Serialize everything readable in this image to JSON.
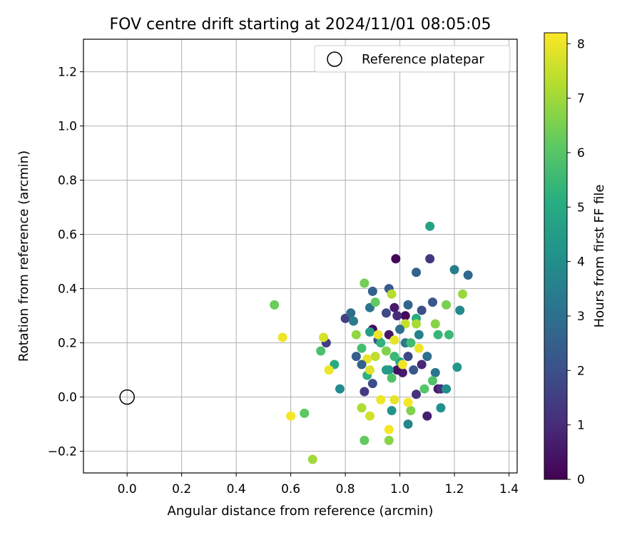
{
  "chart_data": {
    "type": "scatter",
    "title": "FOV centre drift starting at 2024/11/01 08:05:05",
    "xlabel": "Angular distance from reference (arcmin)",
    "ylabel": "Rotation from reference (arcmin)",
    "xlim": [
      -0.16,
      1.43
    ],
    "ylim": [
      -0.28,
      1.32
    ],
    "xticks": [
      0.0,
      0.2,
      0.4,
      0.6,
      0.8,
      1.0,
      1.2,
      1.4
    ],
    "xtick_labels": [
      "0.0",
      "0.2",
      "0.4",
      "0.6",
      "0.8",
      "1.0",
      "1.2",
      "1.4"
    ],
    "yticks": [
      -0.2,
      0.0,
      0.2,
      0.4,
      0.6,
      0.8,
      1.0,
      1.2
    ],
    "ytick_labels": [
      "−0.2",
      "0.0",
      "0.2",
      "0.4",
      "0.6",
      "0.8",
      "1.0",
      "1.2"
    ],
    "grid": true,
    "legend": {
      "placement": "top-right",
      "entries": [
        "Reference platepar"
      ]
    },
    "reference_point": {
      "x": 0.0,
      "y": 0.0
    },
    "colorbar": {
      "label": "Hours from first FF file",
      "colormap": "viridis",
      "range": [
        0,
        8.2
      ],
      "ticks": [
        0,
        1,
        2,
        3,
        4,
        5,
        6,
        7,
        8
      ],
      "tick_labels": [
        "0",
        "1",
        "2",
        "3",
        "4",
        "5",
        "6",
        "7",
        "8"
      ]
    },
    "points": [
      {
        "x": 0.985,
        "y": 0.51,
        "h": 0.1
      },
      {
        "x": 1.02,
        "y": 0.3,
        "h": 0.2
      },
      {
        "x": 0.9,
        "y": 0.25,
        "h": 0.3
      },
      {
        "x": 0.96,
        "y": 0.23,
        "h": 0.5
      },
      {
        "x": 1.14,
        "y": 0.03,
        "h": 0.5
      },
      {
        "x": 1.01,
        "y": 0.09,
        "h": 0.6
      },
      {
        "x": 0.99,
        "y": 0.1,
        "h": 0.4
      },
      {
        "x": 1.1,
        "y": -0.07,
        "h": 0.7
      },
      {
        "x": 0.98,
        "y": 0.33,
        "h": 0.6
      },
      {
        "x": 1.08,
        "y": 0.12,
        "h": 0.9
      },
      {
        "x": 1.11,
        "y": 0.51,
        "h": 1.3
      },
      {
        "x": 1.15,
        "y": 0.03,
        "h": 1.1
      },
      {
        "x": 1.06,
        "y": 0.01,
        "h": 1.2
      },
      {
        "x": 0.87,
        "y": 0.02,
        "h": 1.4
      },
      {
        "x": 0.8,
        "y": 0.29,
        "h": 1.6
      },
      {
        "x": 0.73,
        "y": 0.2,
        "h": 1.5
      },
      {
        "x": 1.03,
        "y": 0.15,
        "h": 1.7
      },
      {
        "x": 0.95,
        "y": 0.31,
        "h": 1.8
      },
      {
        "x": 1.08,
        "y": 0.32,
        "h": 2.0
      },
      {
        "x": 0.9,
        "y": 0.05,
        "h": 1.9
      },
      {
        "x": 0.92,
        "y": 0.21,
        "h": 2.1
      },
      {
        "x": 1.12,
        "y": 0.35,
        "h": 2.2
      },
      {
        "x": 0.96,
        "y": 0.4,
        "h": 2.3
      },
      {
        "x": 1.06,
        "y": 0.46,
        "h": 2.6
      },
      {
        "x": 0.9,
        "y": 0.39,
        "h": 2.5
      },
      {
        "x": 0.84,
        "y": 0.15,
        "h": 2.4
      },
      {
        "x": 1.03,
        "y": 0.34,
        "h": 2.7
      },
      {
        "x": 1.25,
        "y": 0.45,
        "h": 2.8
      },
      {
        "x": 0.82,
        "y": 0.31,
        "h": 2.9
      },
      {
        "x": 1.1,
        "y": 0.15,
        "h": 3.0
      },
      {
        "x": 1.13,
        "y": 0.09,
        "h": 3.2
      },
      {
        "x": 0.89,
        "y": 0.33,
        "h": 3.1
      },
      {
        "x": 1.02,
        "y": 0.2,
        "h": 3.3
      },
      {
        "x": 1.2,
        "y": 0.47,
        "h": 3.5
      },
      {
        "x": 0.83,
        "y": 0.28,
        "h": 3.4
      },
      {
        "x": 1.07,
        "y": 0.23,
        "h": 3.6
      },
      {
        "x": 1.22,
        "y": 0.32,
        "h": 3.8
      },
      {
        "x": 1.03,
        "y": -0.1,
        "h": 3.7
      },
      {
        "x": 0.78,
        "y": 0.03,
        "h": 3.9
      },
      {
        "x": 1.17,
        "y": 0.03,
        "h": 4.0
      },
      {
        "x": 0.97,
        "y": -0.05,
        "h": 4.2
      },
      {
        "x": 1.15,
        "y": -0.04,
        "h": 4.1
      },
      {
        "x": 0.96,
        "y": 0.1,
        "h": 4.4
      },
      {
        "x": 1.21,
        "y": 0.11,
        "h": 4.3
      },
      {
        "x": 0.89,
        "y": 0.24,
        "h": 4.6
      },
      {
        "x": 1.11,
        "y": 0.63,
        "h": 4.7
      },
      {
        "x": 1.0,
        "y": 0.13,
        "h": 4.8
      },
      {
        "x": 0.76,
        "y": 0.12,
        "h": 5.0
      },
      {
        "x": 1.06,
        "y": 0.29,
        "h": 5.1
      },
      {
        "x": 0.88,
        "y": 0.08,
        "h": 5.2
      },
      {
        "x": 1.14,
        "y": 0.23,
        "h": 5.4
      },
      {
        "x": 1.18,
        "y": 0.23,
        "h": 5.5
      },
      {
        "x": 0.93,
        "y": 0.2,
        "h": 5.3
      },
      {
        "x": 1.04,
        "y": 0.2,
        "h": 5.6
      },
      {
        "x": 0.71,
        "y": 0.17,
        "h": 5.8
      },
      {
        "x": 0.86,
        "y": 0.18,
        "h": 5.7
      },
      {
        "x": 0.97,
        "y": 0.07,
        "h": 5.9
      },
      {
        "x": 1.09,
        "y": 0.03,
        "h": 6.0
      },
      {
        "x": 0.65,
        "y": -0.06,
        "h": 6.1
      },
      {
        "x": 0.87,
        "y": -0.16,
        "h": 6.2
      },
      {
        "x": 0.54,
        "y": 0.34,
        "h": 6.3
      },
      {
        "x": 0.87,
        "y": 0.42,
        "h": 6.4
      },
      {
        "x": 1.17,
        "y": 0.34,
        "h": 6.5
      },
      {
        "x": 1.04,
        "y": -0.05,
        "h": 6.6
      },
      {
        "x": 0.96,
        "y": -0.16,
        "h": 6.7
      },
      {
        "x": 0.91,
        "y": 0.35,
        "h": 6.2
      },
      {
        "x": 1.23,
        "y": 0.38,
        "h": 6.9
      },
      {
        "x": 0.84,
        "y": 0.23,
        "h": 6.8
      },
      {
        "x": 0.95,
        "y": 0.17,
        "h": 6.6
      },
      {
        "x": 1.13,
        "y": 0.27,
        "h": 6.7
      },
      {
        "x": 0.68,
        "y": -0.23,
        "h": 7.0
      },
      {
        "x": 0.86,
        "y": -0.04,
        "h": 7.2
      },
      {
        "x": 1.06,
        "y": 0.27,
        "h": 7.1
      },
      {
        "x": 0.97,
        "y": 0.38,
        "h": 7.3
      },
      {
        "x": 0.91,
        "y": 0.15,
        "h": 7.4
      },
      {
        "x": 1.02,
        "y": 0.27,
        "h": 7.5
      },
      {
        "x": 0.89,
        "y": -0.07,
        "h": 7.6
      },
      {
        "x": 0.72,
        "y": 0.22,
        "h": 7.7
      },
      {
        "x": 0.57,
        "y": 0.22,
        "h": 8.0
      },
      {
        "x": 0.6,
        "y": -0.07,
        "h": 8.1
      },
      {
        "x": 0.74,
        "y": 0.1,
        "h": 8.0
      },
      {
        "x": 0.92,
        "y": 0.23,
        "h": 8.0
      },
      {
        "x": 0.98,
        "y": 0.21,
        "h": 7.9
      },
      {
        "x": 1.01,
        "y": 0.12,
        "h": 8.0
      },
      {
        "x": 0.96,
        "y": -0.12,
        "h": 8.1
      },
      {
        "x": 0.89,
        "y": 0.1,
        "h": 7.8
      },
      {
        "x": 0.93,
        "y": -0.01,
        "h": 8.0
      },
      {
        "x": 0.98,
        "y": -0.01,
        "h": 7.9
      },
      {
        "x": 1.03,
        "y": -0.02,
        "h": 8.1
      },
      {
        "x": 1.07,
        "y": 0.18,
        "h": 8.0
      },
      {
        "x": 0.88,
        "y": 0.14,
        "h": 7.9
      },
      {
        "x": 0.95,
        "y": 0.1,
        "h": 4.5
      },
      {
        "x": 1.0,
        "y": 0.25,
        "h": 3.0
      },
      {
        "x": 1.05,
        "y": 0.1,
        "h": 2.2
      },
      {
        "x": 0.98,
        "y": 0.15,
        "h": 5.5
      },
      {
        "x": 1.12,
        "y": 0.06,
        "h": 5.9
      },
      {
        "x": 0.86,
        "y": 0.12,
        "h": 2.6
      },
      {
        "x": 0.99,
        "y": 0.3,
        "h": 1.0
      }
    ]
  }
}
